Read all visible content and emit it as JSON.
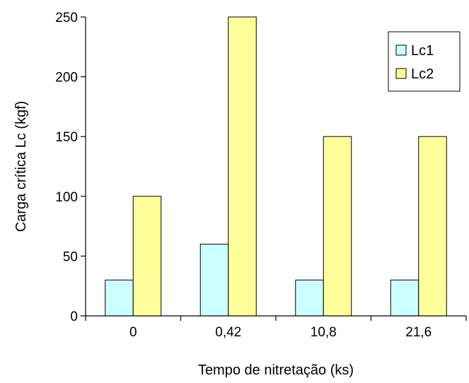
{
  "chart_data": {
    "type": "bar",
    "categories": [
      "0",
      "0,42",
      "10,8",
      "21,6"
    ],
    "series": [
      {
        "name": "Lc1",
        "values": [
          30,
          60,
          30,
          30
        ],
        "color": "#ccffff"
      },
      {
        "name": "Lc2",
        "values": [
          100,
          250,
          150,
          150
        ],
        "color": "#ffff99"
      }
    ],
    "xlabel": "Tempo de nitretação (ks)",
    "ylabel": "Carga crítica Lc (kgf)",
    "ylim": [
      0,
      250
    ],
    "yticks": [
      0,
      50,
      100,
      150,
      200,
      250
    ],
    "grid": false,
    "legend_position": "top-right"
  }
}
